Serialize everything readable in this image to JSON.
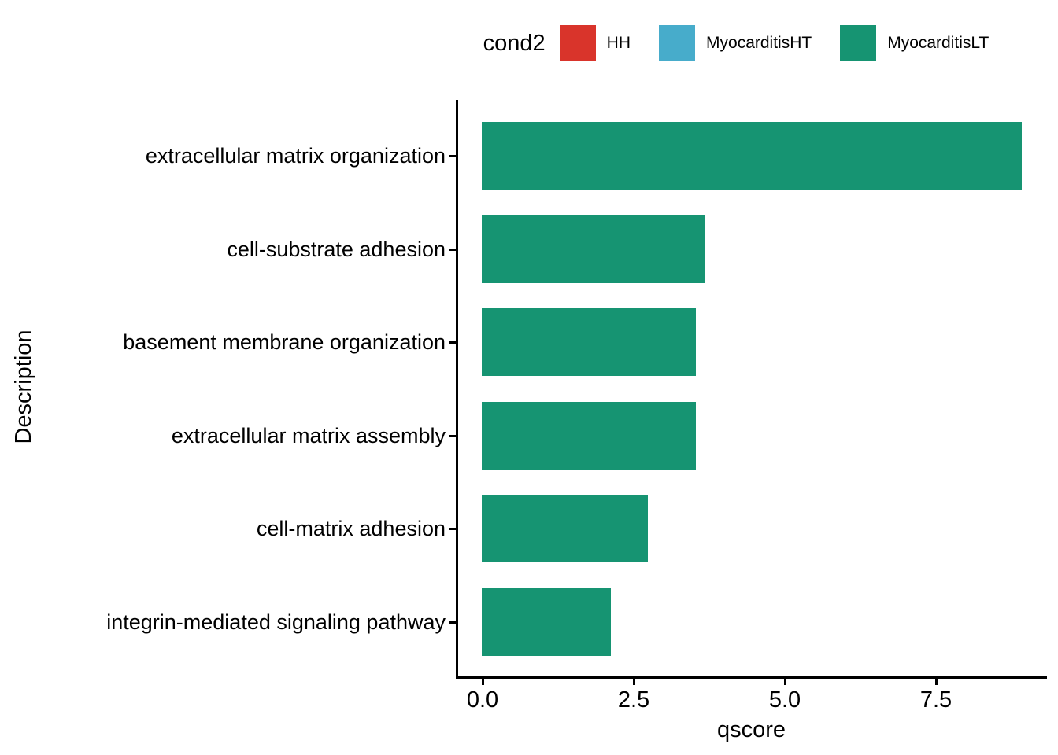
{
  "legend": {
    "title": "cond2",
    "items": [
      {
        "label": "HH",
        "color": "#D9342B"
      },
      {
        "label": "MyocarditisHT",
        "color": "#47ACCB"
      },
      {
        "label": "MyocarditisLT",
        "color": "#169472"
      }
    ]
  },
  "chart_data": {
    "type": "bar",
    "orientation": "horizontal",
    "title": "",
    "xlabel": "qscore",
    "ylabel": "Description",
    "categories": [
      "extracellular matrix organization",
      "cell-substrate adhesion",
      "basement membrane organization",
      "extracellular matrix assembly",
      "cell-matrix adhesion",
      "integrin-mediated signaling pathway"
    ],
    "values": [
      8.93,
      3.69,
      3.54,
      3.54,
      2.75,
      2.14
    ],
    "series_name": "MyocarditisLT",
    "bar_color": "#169472",
    "x_ticks": {
      "labels": [
        "0.0",
        "2.5",
        "5.0",
        "7.5"
      ],
      "values": [
        0,
        2.5,
        5.0,
        7.5
      ]
    },
    "xlim": [
      -0.45,
      9.35
    ],
    "grid": false,
    "legend_position": "top",
    "axis_color": "#000000"
  }
}
